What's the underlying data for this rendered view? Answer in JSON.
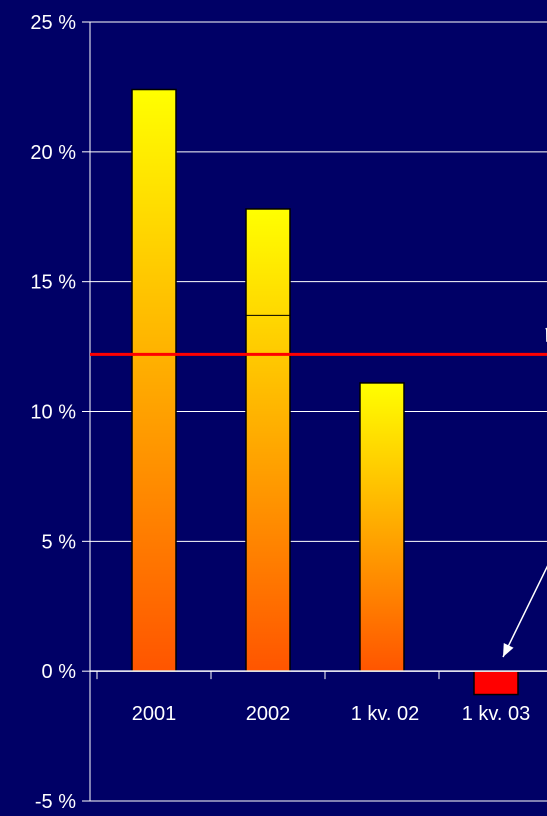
{
  "chart_data": {
    "type": "bar",
    "categories": [
      "2001",
      "2002",
      "1 kv. 02",
      "1 kv. 03"
    ],
    "values": [
      22.4,
      17.8,
      11.1,
      -0.9
    ],
    "bar_colors": [
      "gradient",
      "gradient",
      "gradient",
      "#ff0000"
    ],
    "y_ticks": [
      -5,
      0,
      5,
      10,
      15,
      20,
      25
    ],
    "y_tick_labels": [
      "-5 %",
      "0 %",
      "5 %",
      "10 %",
      "15 %",
      "20 %",
      "25 %"
    ],
    "ylim": [
      -5,
      25
    ],
    "grid": true,
    "reference_line": {
      "value": 12.2,
      "color": "#ff0000"
    },
    "internal_divider": {
      "category": "2002",
      "value": 13.7
    },
    "colors": {
      "background": "#000066",
      "grid": "#ffffff",
      "axis": "#ffffff",
      "bar_gradient_top": "#ffff00",
      "bar_gradient_bottom": "#ff5500",
      "bar_outline": "#000000",
      "text": "#ffffff"
    }
  }
}
